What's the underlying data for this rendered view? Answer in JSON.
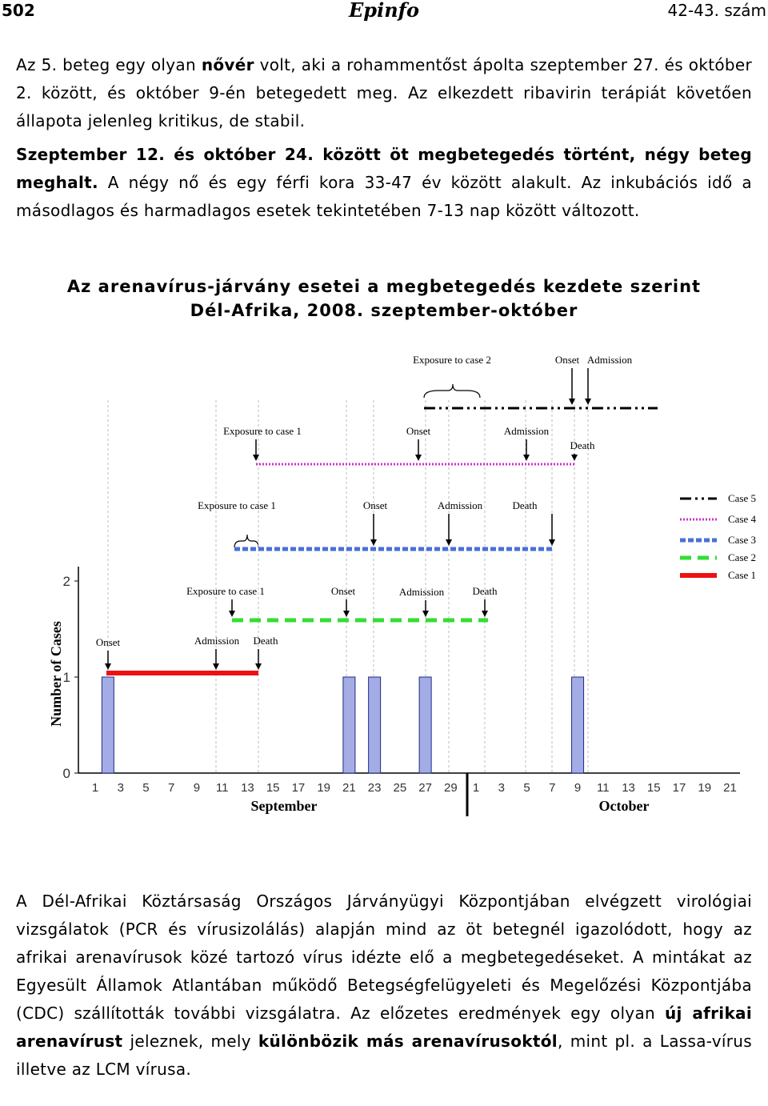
{
  "header": {
    "page_number": "502",
    "logo": "Epinfo",
    "issue": "42-43. szám"
  },
  "paragraphs": [
    [
      {
        "text": "Az 5. beteg egy olyan ",
        "bold": false
      },
      {
        "text": "nővér",
        "bold": true
      },
      {
        "text": " volt, aki a rohammentőst ápolta szeptember 27. és október 2. között, és október 9-én betegedett meg. Az elkezdett ribavirin terápiát követően állapota jelenleg kritikus, de stabil.",
        "bold": false
      }
    ],
    [
      {
        "text": "Szeptember 12. és október 24. között öt megbetegedés történt, négy beteg meghalt.",
        "bold": true
      },
      {
        "text": " A négy nő és egy férfi kora 33-47 év között alakult. Az inkubációs idő a másodlagos és harmadlagos esetek tekintetében 7-13 nap között változott.",
        "bold": false
      }
    ]
  ],
  "chart_data": {
    "type": "bar",
    "title": "Az arenavírus-járvány esetei a megbetegedés kezdete szerint",
    "subtitle": "Dél-Afrika, 2008. szeptember-október",
    "ylabel": "Number of Cases",
    "month_labels": [
      "September",
      "October"
    ],
    "categories": [
      "1",
      null,
      "3",
      null,
      "5",
      null,
      "7",
      null,
      "9",
      null,
      "11",
      null,
      "13",
      null,
      "15",
      null,
      "17",
      null,
      "19",
      null,
      "21",
      null,
      "23",
      null,
      "25",
      null,
      "27",
      null,
      "29",
      null,
      "1",
      null,
      "3",
      null,
      "5",
      null,
      "7",
      null,
      "9",
      null,
      "11",
      null,
      "13",
      null,
      "15",
      null,
      "17",
      null,
      "19",
      null,
      "21"
    ],
    "values": [
      0,
      1,
      0,
      0,
      0,
      0,
      0,
      0,
      0,
      0,
      0,
      0,
      0,
      0,
      0,
      0,
      0,
      0,
      0,
      0,
      1,
      0,
      1,
      0,
      0,
      0,
      1,
      0,
      0,
      0,
      0,
      0,
      0,
      0,
      0,
      0,
      0,
      0,
      1,
      0,
      0,
      0,
      0,
      0,
      0,
      0,
      0,
      0,
      0,
      0,
      0
    ],
    "color": "#a4ace6",
    "ylim": [
      0,
      2.15
    ],
    "yticks": [
      0,
      1,
      2
    ],
    "timelines": [
      {
        "name": "Case 5",
        "color": "#000000",
        "style": "dash-dot",
        "events": [
          "Exposure to case 2",
          "Onset",
          "Admission"
        ]
      },
      {
        "name": "Case 4",
        "color": "#cc33cc",
        "style": "dotted",
        "events": [
          "Exposure to case 1",
          "Onset",
          "Admission",
          "Death"
        ]
      },
      {
        "name": "Case 3",
        "color": "#4a6fd8",
        "style": "dashed",
        "events": [
          "Exposure to case 1",
          "Onset",
          "Admission",
          "Death"
        ]
      },
      {
        "name": "Case 2",
        "color": "#33dd33",
        "style": "long-dashed",
        "events": [
          "Exposure to case 1",
          "Onset",
          "Admission",
          "Death"
        ]
      },
      {
        "name": "Case 1",
        "color": "#ee1111",
        "style": "solid",
        "events": [
          "Onset",
          "Admission",
          "Death"
        ]
      }
    ]
  },
  "closing_paragraph": [
    {
      "text": "A Dél-Afrikai Köztársaság Országos Járványügyi Központjában elvégzett virológiai vizsgálatok (PCR és vírusizolálás) alapján mind az öt betegnél igazolódott, hogy az afrikai arenavírusok közé tartozó vírus idézte elő a megbetegedéseket. A mintákat az Egyesült Államok Atlantában működő Betegségfelügyeleti és Megelőzési Központjába (CDC) szállították további vizsgálatra. Az előzetes eredmények egy olyan ",
      "bold": false
    },
    {
      "text": "új afrikai arenavírust",
      "bold": true
    },
    {
      "text": " jeleznek, mely ",
      "bold": false
    },
    {
      "text": "különbözik más arenavírusoktól",
      "bold": true
    },
    {
      "text": ", mint pl. a Lassa-vírus illetve az LCM vírusa.",
      "bold": false
    }
  ]
}
